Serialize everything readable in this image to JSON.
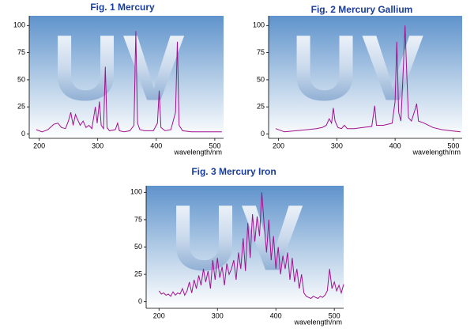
{
  "chart_data": [
    {
      "type": "line",
      "title": "Fig. 1 Mercury",
      "x_label": "wavelength/nm",
      "watermark": "UV",
      "color": "#a0138e",
      "xlim": [
        183,
        515
      ],
      "ylim": [
        -4,
        109
      ],
      "xticks": [
        200,
        300,
        400,
        500
      ],
      "yticks": [
        0,
        25,
        50,
        75,
        100
      ],
      "x": [
        195,
        205,
        215,
        225,
        232,
        238,
        245,
        250,
        254,
        258,
        262,
        265,
        270,
        275,
        280,
        285,
        290,
        296,
        299,
        303,
        306,
        310,
        313,
        316,
        320,
        330,
        334,
        337,
        345,
        355,
        362,
        365,
        368,
        372,
        380,
        395,
        402,
        405,
        408,
        415,
        425,
        433,
        436,
        439,
        445,
        460,
        480,
        500,
        512
      ],
      "values": [
        4,
        2,
        4,
        9,
        10,
        6,
        5,
        12,
        20,
        8,
        18,
        14,
        8,
        12,
        6,
        8,
        5,
        25,
        10,
        30,
        8,
        5,
        62,
        6,
        3,
        4,
        10,
        3,
        2,
        3,
        8,
        95,
        10,
        4,
        3,
        3,
        10,
        40,
        6,
        3,
        4,
        20,
        85,
        8,
        3,
        2,
        2,
        2,
        2
      ]
    },
    {
      "type": "line",
      "title": "Fig. 2 Mercury Gallium",
      "x_label": "wavelength/nm",
      "watermark": "UV",
      "color": "#a0138e",
      "xlim": [
        183,
        515
      ],
      "ylim": [
        -4,
        109
      ],
      "xticks": [
        200,
        300,
        400,
        500
      ],
      "yticks": [
        0,
        25,
        50,
        75,
        100
      ],
      "x": [
        195,
        210,
        230,
        250,
        265,
        275,
        282,
        287,
        291,
        294,
        297,
        302,
        308,
        313,
        318,
        330,
        345,
        360,
        365,
        368,
        380,
        395,
        400,
        403,
        406,
        410,
        414,
        417,
        420,
        423,
        428,
        434,
        437,
        440,
        450,
        465,
        480,
        495,
        512
      ],
      "values": [
        5,
        2,
        3,
        4,
        5,
        6,
        8,
        14,
        10,
        24,
        12,
        6,
        5,
        8,
        5,
        5,
        6,
        7,
        26,
        8,
        8,
        10,
        30,
        85,
        20,
        12,
        60,
        100,
        55,
        15,
        12,
        22,
        28,
        12,
        10,
        6,
        4,
        3,
        2
      ]
    },
    {
      "type": "line",
      "title": "Fig. 3 Mercury Iron",
      "x_label": "wavelength/nm",
      "watermark": "UV",
      "color": "#a0138e",
      "xlim": [
        178,
        516
      ],
      "ylim": [
        -6,
        106
      ],
      "xticks": [
        200,
        300,
        400,
        500
      ],
      "yticks": [
        0,
        25,
        50,
        75,
        100
      ],
      "x": [
        200,
        204,
        208,
        212,
        216,
        220,
        224,
        228,
        232,
        236,
        240,
        244,
        248,
        252,
        256,
        260,
        264,
        268,
        272,
        276,
        280,
        284,
        288,
        292,
        296,
        300,
        304,
        308,
        312,
        316,
        320,
        324,
        328,
        332,
        336,
        340,
        344,
        348,
        352,
        356,
        360,
        364,
        368,
        372,
        376,
        380,
        384,
        388,
        392,
        396,
        400,
        404,
        408,
        412,
        416,
        420,
        424,
        428,
        432,
        436,
        440,
        444,
        448,
        452,
        456,
        460,
        464,
        468,
        472,
        476,
        480,
        484,
        488,
        492,
        496,
        500,
        504,
        508,
        512,
        516
      ],
      "values": [
        10,
        7,
        8,
        6,
        7,
        5,
        9,
        6,
        8,
        7,
        12,
        6,
        10,
        18,
        8,
        20,
        12,
        24,
        15,
        30,
        18,
        28,
        12,
        38,
        20,
        40,
        22,
        32,
        15,
        35,
        25,
        30,
        38,
        20,
        45,
        30,
        58,
        28,
        72,
        40,
        80,
        55,
        78,
        60,
        100,
        70,
        45,
        75,
        38,
        60,
        30,
        50,
        25,
        42,
        30,
        45,
        20,
        40,
        18,
        30,
        12,
        25,
        8,
        5,
        4,
        3,
        5,
        4,
        3,
        5,
        4,
        6,
        10,
        30,
        12,
        18,
        10,
        15,
        8,
        16
      ]
    }
  ]
}
